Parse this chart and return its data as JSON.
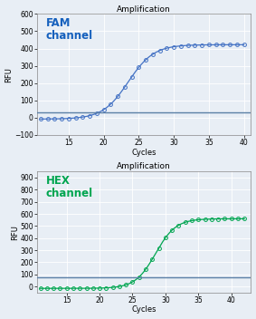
{
  "fig_width": 2.83,
  "fig_height": 3.52,
  "dpi": 100,
  "background_color": "#e8eef5",
  "fam": {
    "title": "Amplification",
    "title_fontsize": 6.5,
    "label": "FAM\nchannel",
    "label_color": "#1560BD",
    "label_fontsize": 8.5,
    "xlabel": "Cycles",
    "ylabel": "RFU",
    "axis_fontsize": 6,
    "tick_fontsize": 5.5,
    "xlim": [
      10.5,
      41
    ],
    "ylim": [
      -100,
      600
    ],
    "xticks": [
      15,
      20,
      25,
      30,
      35,
      40
    ],
    "yticks": [
      -100,
      0,
      100,
      200,
      300,
      400,
      500,
      600
    ],
    "threshold": 30,
    "threshold_color": "#5B7FA6",
    "line_color": "#4472C4",
    "marker_color": "#4472C4",
    "x_start": 11,
    "x_end": 40,
    "sigmoid_midpoint": 23.5,
    "sigmoid_steepness": 0.55,
    "sigmoid_max": 430,
    "baseline": -8
  },
  "hex": {
    "title": "Amplification",
    "title_fontsize": 6.5,
    "label": "HEX\nchannel",
    "label_color": "#00A550",
    "label_fontsize": 8.5,
    "xlabel": "Cycles",
    "ylabel": "RFU",
    "axis_fontsize": 6,
    "tick_fontsize": 5.5,
    "xlim": [
      10.5,
      43
    ],
    "ylim": [
      -50,
      950
    ],
    "xticks": [
      15,
      20,
      25,
      30,
      35,
      40
    ],
    "yticks": [
      0,
      100,
      200,
      300,
      400,
      500,
      600,
      700,
      800,
      900
    ],
    "threshold": 75,
    "threshold_color": "#5B7FA6",
    "line_color": "#00A550",
    "marker_color": "#00A550",
    "x_start": 11,
    "x_end": 42,
    "sigmoid_midpoint": 28.5,
    "sigmoid_steepness": 0.65,
    "sigmoid_max": 575,
    "baseline": -15
  }
}
